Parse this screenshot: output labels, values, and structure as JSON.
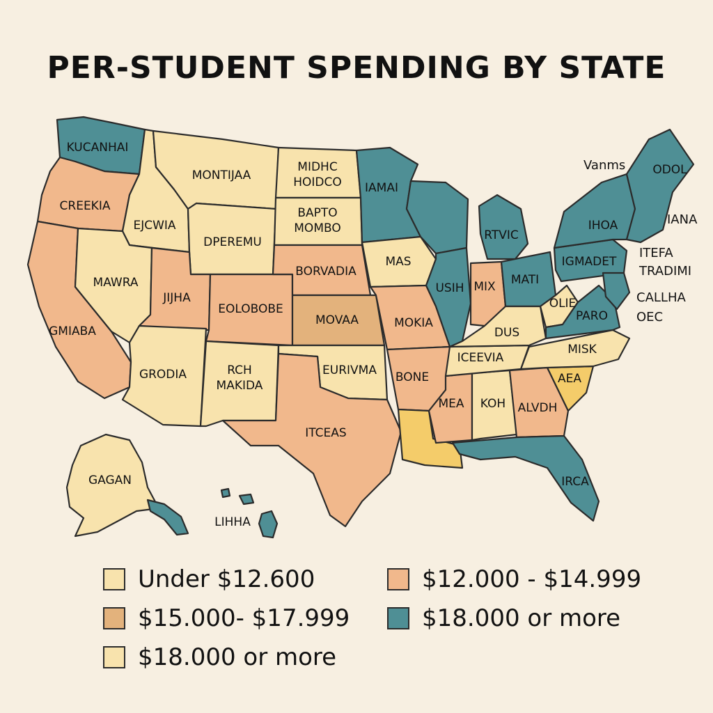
{
  "title": "PER-STUDENT SPENDING BY STATE",
  "colors": {
    "background": "#f7efe1",
    "light_yellow": "#f8e3ad",
    "salmon": "#f1b88c",
    "tan": "#e3b27c",
    "teal": "#4f8f95",
    "gold": "#f4cc6a"
  },
  "legend": [
    {
      "label": "Under $12.600",
      "color": "#f8e3ad"
    },
    {
      "label": "$12.000 - $14.999",
      "color": "#f1b88c"
    },
    {
      "label": "$15.000- $17.999",
      "color": "#e3b27c"
    },
    {
      "label": "$18.000 or more",
      "color": "#4f8f95"
    },
    {
      "label": "$18.000 or more",
      "color": "#f8e3ad"
    }
  ],
  "states": [
    {
      "id": "wa",
      "label": "KUCANHAI"
    },
    {
      "id": "or",
      "label": "CREEKIA"
    },
    {
      "id": "id",
      "label": "EJCWIA"
    },
    {
      "id": "mt",
      "label": "MONTIJAA"
    },
    {
      "id": "nd",
      "label": "MIDHC HOIDCO"
    },
    {
      "id": "sd",
      "label": "BAPTO MOMBO"
    },
    {
      "id": "wy",
      "label": "DPEREMU"
    },
    {
      "id": "nv",
      "label": "MAWRA"
    },
    {
      "id": "ca",
      "label": "GMIABA"
    },
    {
      "id": "ut",
      "label": "JIJHA"
    },
    {
      "id": "co",
      "label": "EOLOBOBE"
    },
    {
      "id": "ne",
      "label": "BORVADIA"
    },
    {
      "id": "ks",
      "label": "MOVAA"
    },
    {
      "id": "mn",
      "label": "IAMAI"
    },
    {
      "id": "ia",
      "label": "MAS"
    },
    {
      "id": "wi",
      "label": ""
    },
    {
      "id": "mi",
      "label": "RTVIC"
    },
    {
      "id": "il",
      "label": "USIH"
    },
    {
      "id": "in",
      "label": "MIX"
    },
    {
      "id": "oh",
      "label": "MATI"
    },
    {
      "id": "mo",
      "label": "MOKIA"
    },
    {
      "id": "az",
      "label": "GRODIA"
    },
    {
      "id": "nm",
      "label": "RCH MAKIDA"
    },
    {
      "id": "ok",
      "label": "EURIVMA"
    },
    {
      "id": "tx",
      "label": "ITCEAS"
    },
    {
      "id": "ar",
      "label": "BONE"
    },
    {
      "id": "la",
      "label": ""
    },
    {
      "id": "ms",
      "label": "MEA"
    },
    {
      "id": "al",
      "label": "KOH"
    },
    {
      "id": "ga",
      "label": "ALVDH"
    },
    {
      "id": "fl",
      "label": "IRCA"
    },
    {
      "id": "sc",
      "label": "AEA"
    },
    {
      "id": "nc",
      "label": "MISK"
    },
    {
      "id": "tn",
      "label": "ICEEVIA"
    },
    {
      "id": "ky",
      "label": "DUS"
    },
    {
      "id": "wv",
      "label": "OLIE"
    },
    {
      "id": "va",
      "label": "PARO"
    },
    {
      "id": "pa",
      "label": "IGMADET"
    },
    {
      "id": "ny",
      "label": "IHOA"
    },
    {
      "id": "ne_states",
      "label": "ODOL"
    },
    {
      "id": "ak",
      "label": "GAGAN"
    },
    {
      "id": "hi",
      "label": "LIHHA"
    }
  ],
  "outside_labels": [
    {
      "id": "vanms",
      "label": "Vanms"
    },
    {
      "id": "iana",
      "label": "IANA"
    },
    {
      "id": "itefa",
      "label": "ITEFA"
    },
    {
      "id": "tradimi",
      "label": "TRADIMI"
    },
    {
      "id": "callha",
      "label": "CALLHA"
    },
    {
      "id": "oec",
      "label": "OEC"
    }
  ]
}
